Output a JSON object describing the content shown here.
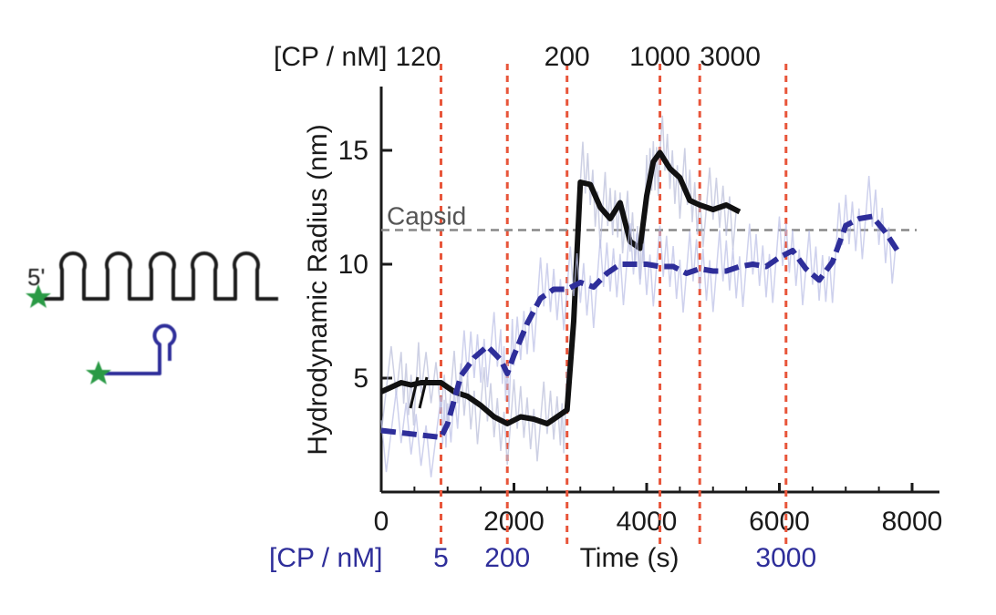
{
  "chart_data": {
    "type": "line",
    "xlabel": "Time (s)",
    "ylabel": "Hydrodynamic Radius (nm)",
    "xlim": [
      0,
      8500
    ],
    "ylim": [
      0,
      18
    ],
    "xticks": [
      "0",
      "2000",
      "4000",
      "6000",
      "8000"
    ],
    "yticks": [
      "5",
      "10",
      "15"
    ],
    "grid": false,
    "reference_line": {
      "label": "Capsid",
      "y": 11.5
    },
    "top_annotation": {
      "prefix": "[CP / nM]",
      "color": "#1a1a1a",
      "marks": [
        {
          "x": 900,
          "label": "120"
        },
        {
          "x": 2800,
          "label": "200"
        },
        {
          "x": 4200,
          "label": "1000"
        },
        {
          "x": 4800,
          "label": "3000"
        }
      ]
    },
    "bottom_annotation": {
      "prefix": "[CP / nM]",
      "color": "#2e2e9a",
      "marks": [
        {
          "x": 900,
          "label": "5"
        },
        {
          "x": 1900,
          "label": "200"
        },
        {
          "x": 6100,
          "label": "3000"
        }
      ]
    },
    "vlines_x": [
      900,
      1900,
      2800,
      4200,
      4800,
      6100
    ],
    "series": [
      {
        "color": "#111111",
        "style": "solid",
        "x": [
          0,
          300,
          450,
          600,
          900,
          1100,
          1300,
          1500,
          1700,
          1900,
          2100,
          2300,
          2500,
          2700,
          2800,
          2900,
          3000,
          3150,
          3300,
          3450,
          3600,
          3750,
          3900,
          4000,
          4100,
          4200,
          4350,
          4500,
          4650,
          4800,
          5000,
          5200,
          5400
        ],
        "y": [
          4.4,
          4.8,
          4.7,
          4.8,
          4.8,
          4.4,
          4.2,
          3.8,
          3.3,
          3.0,
          3.3,
          3.2,
          3.0,
          3.4,
          3.6,
          7.5,
          13.6,
          13.5,
          12.5,
          12.0,
          12.7,
          11.0,
          10.7,
          13.0,
          14.5,
          14.9,
          14.2,
          13.8,
          12.8,
          12.6,
          12.4,
          12.6,
          12.3
        ]
      },
      {
        "color": "#2e2e9a",
        "style": "dashed",
        "x": [
          0,
          300,
          600,
          900,
          1000,
          1200,
          1400,
          1600,
          1800,
          1900,
          2000,
          2200,
          2400,
          2600,
          2800,
          3000,
          3200,
          3400,
          3600,
          3800,
          4000,
          4200,
          4400,
          4600,
          4800,
          5000,
          5200,
          5400,
          5600,
          5800,
          6000,
          6200,
          6400,
          6600,
          6800,
          7000,
          7200,
          7400,
          7600,
          7800
        ],
        "y": [
          2.7,
          2.6,
          2.5,
          2.4,
          3.0,
          5.1,
          5.9,
          6.4,
          5.8,
          5.2,
          6.0,
          7.4,
          8.5,
          8.9,
          8.9,
          9.2,
          9.0,
          9.6,
          10.0,
          10.0,
          10.0,
          9.9,
          9.9,
          9.6,
          9.8,
          9.7,
          9.7,
          9.9,
          10.0,
          9.9,
          10.3,
          10.6,
          9.8,
          9.3,
          10.1,
          11.7,
          12.0,
          12.1,
          11.4,
          10.5
        ]
      }
    ]
  },
  "diagram": {
    "label_5prime": "5'"
  }
}
